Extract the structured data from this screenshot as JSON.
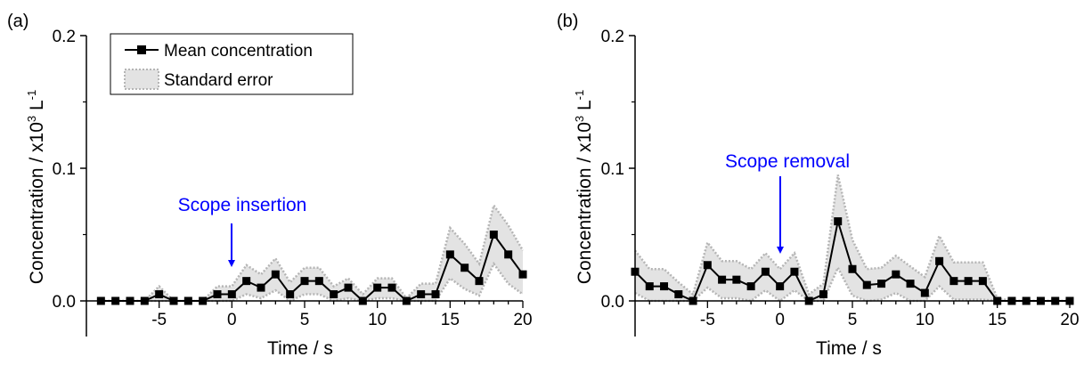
{
  "chart_data": [
    {
      "type": "line",
      "panel_label": "(a)",
      "xlabel": "Time / s",
      "ylabel": "Concentration / x10",
      "ylabel_sup1": "3",
      "ylabel_unit": " L",
      "ylabel_sup2": "-1",
      "xlim": [
        -10,
        20
      ],
      "ylim": [
        0,
        0.2
      ],
      "xticks": [
        -5,
        0,
        5,
        10,
        15,
        20
      ],
      "yticks": [
        0.0,
        0.1,
        0.2
      ],
      "ytick_labels": [
        "0.0",
        "0.1",
        "0.2"
      ],
      "grid": false,
      "legend_position": "top-left",
      "series": [
        {
          "name": "Mean concentration",
          "x": [
            -9,
            -8,
            -7,
            -6,
            -5,
            -4,
            -3,
            -2,
            -1,
            0,
            1,
            2,
            3,
            4,
            5,
            6,
            7,
            8,
            9,
            10,
            11,
            12,
            13,
            14,
            15,
            16,
            17,
            18,
            19,
            20
          ],
          "values": [
            0,
            0,
            0,
            0,
            0.005,
            0,
            0,
            0,
            0.005,
            0.005,
            0.015,
            0.01,
            0.02,
            0.005,
            0.015,
            0.015,
            0.005,
            0.01,
            0,
            0.01,
            0.01,
            0,
            0.005,
            0.005,
            0.035,
            0.025,
            0.015,
            0.05,
            0.035,
            0.02
          ],
          "upper": [
            0,
            0,
            0,
            0,
            0.011,
            0,
            0,
            0,
            0.011,
            0.011,
            0.027,
            0.02,
            0.032,
            0.014,
            0.025,
            0.025,
            0.011,
            0.017,
            0.005,
            0.017,
            0.017,
            0.002,
            0.013,
            0.013,
            0.055,
            0.043,
            0.028,
            0.072,
            0.057,
            0.038
          ],
          "lower": [
            0,
            0,
            0,
            0,
            0,
            0,
            0,
            0,
            0,
            0,
            0.005,
            0.002,
            0.008,
            0,
            0.005,
            0.005,
            0,
            0.002,
            0,
            0.002,
            0.002,
            0,
            0,
            0,
            0.017,
            0.009,
            0.004,
            0.028,
            0.013,
            0.005
          ]
        }
      ],
      "annotation": {
        "text": "Scope insertion",
        "x": 0
      },
      "legend": {
        "mean_label": "Mean concentration",
        "error_label": "Standard error"
      }
    },
    {
      "type": "line",
      "panel_label": "(b)",
      "xlabel": "Time / s",
      "ylabel": "Concentration / x10",
      "ylabel_sup1": "3",
      "ylabel_unit": " L",
      "ylabel_sup2": "-1",
      "xlim": [
        -10,
        20
      ],
      "ylim": [
        0,
        0.2
      ],
      "xticks": [
        -5,
        0,
        5,
        10,
        15,
        20
      ],
      "yticks": [
        0.0,
        0.1,
        0.2
      ],
      "ytick_labels": [
        "0.0",
        "0.1",
        "0.2"
      ],
      "grid": false,
      "series": [
        {
          "name": "Mean concentration",
          "x": [
            -10,
            -9,
            -8,
            -7,
            -6,
            -5,
            -4,
            -3,
            -2,
            -1,
            0,
            1,
            2,
            3,
            4,
            5,
            6,
            7,
            8,
            9,
            10,
            11,
            12,
            13,
            14,
            15,
            16,
            17,
            18,
            19,
            20
          ],
          "values": [
            0.022,
            0.011,
            0.011,
            0.005,
            0,
            0.027,
            0.016,
            0.016,
            0.011,
            0.022,
            0.011,
            0.022,
            0,
            0.005,
            0.06,
            0.024,
            0.012,
            0.013,
            0.02,
            0.013,
            0.006,
            0.03,
            0.015,
            0.015,
            0.015,
            0,
            0,
            0,
            0,
            0,
            0
          ],
          "upper": [
            0.038,
            0.024,
            0.024,
            0.014,
            0.005,
            0.044,
            0.03,
            0.03,
            0.024,
            0.036,
            0.024,
            0.036,
            0.005,
            0.013,
            0.095,
            0.046,
            0.024,
            0.025,
            0.034,
            0.026,
            0.018,
            0.049,
            0.029,
            0.029,
            0.029,
            0.002,
            0,
            0,
            0,
            0,
            0
          ],
          "lower": [
            0.006,
            0,
            0,
            0,
            0,
            0.01,
            0.002,
            0.002,
            0,
            0.008,
            0,
            0.008,
            0,
            0,
            0.025,
            0.004,
            0,
            0.001,
            0.006,
            0,
            0,
            0.011,
            0.001,
            0.001,
            0.001,
            0,
            0,
            0,
            0,
            0,
            0
          ]
        }
      ],
      "annotation": {
        "text": "Scope removal",
        "x": 0
      }
    }
  ],
  "colors": {
    "line": "#000000",
    "band_fill": "#e3e3e3",
    "band_edge": "#b5b5b5",
    "annotation": "#0000ff"
  }
}
